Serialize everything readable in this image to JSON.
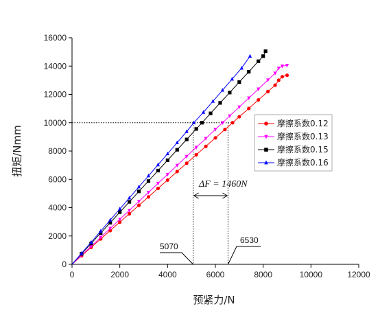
{
  "chart_data": {
    "type": "line",
    "xlabel": "预紧力/N",
    "ylabel": "扭矩/Nmm",
    "xlim": [
      0,
      12000
    ],
    "ylim": [
      0,
      16000
    ],
    "x_ticks": [
      "0",
      "2000",
      "4000",
      "6000",
      "8000",
      "10000",
      "12000"
    ],
    "y_ticks": [
      "0",
      "2000",
      "4000",
      "6000",
      "8000",
      "10000",
      "12000",
      "14000",
      "16000"
    ],
    "grid": false,
    "legend_position": "right",
    "series": [
      {
        "name": "摩擦系数0.12",
        "color": "#ff0000",
        "marker": "circle",
        "points": [
          [
            0,
            0
          ],
          [
            400,
            600
          ],
          [
            800,
            1200
          ],
          [
            1200,
            1790
          ],
          [
            1600,
            2380
          ],
          [
            2000,
            2980
          ],
          [
            2400,
            3570
          ],
          [
            2800,
            4170
          ],
          [
            3200,
            4760
          ],
          [
            3600,
            5360
          ],
          [
            4000,
            5950
          ],
          [
            4400,
            6550
          ],
          [
            4800,
            7140
          ],
          [
            5200,
            7740
          ],
          [
            5600,
            8330
          ],
          [
            6000,
            8930
          ],
          [
            6400,
            9520
          ],
          [
            6720,
            10000
          ],
          [
            7000,
            10420
          ],
          [
            7400,
            11010
          ],
          [
            7800,
            11610
          ],
          [
            8200,
            12200
          ],
          [
            8500,
            12650
          ],
          [
            8650,
            13000
          ],
          [
            8800,
            13250
          ],
          [
            9000,
            13350
          ]
        ]
      },
      {
        "name": "摩擦系数0.13",
        "color": "#ff00ff",
        "marker": "triangle-down",
        "points": [
          [
            0,
            0
          ],
          [
            400,
            640
          ],
          [
            800,
            1270
          ],
          [
            1200,
            1910
          ],
          [
            1600,
            2540
          ],
          [
            2000,
            3180
          ],
          [
            2400,
            3810
          ],
          [
            2800,
            4450
          ],
          [
            3200,
            5080
          ],
          [
            3600,
            5720
          ],
          [
            4000,
            6350
          ],
          [
            4400,
            6990
          ],
          [
            4800,
            7620
          ],
          [
            5200,
            8260
          ],
          [
            5600,
            8890
          ],
          [
            6000,
            9530
          ],
          [
            6300,
            10000
          ],
          [
            6600,
            10480
          ],
          [
            7000,
            11110
          ],
          [
            7400,
            11750
          ],
          [
            7800,
            12380
          ],
          [
            8200,
            13020
          ],
          [
            8500,
            13500
          ],
          [
            8650,
            13850
          ],
          [
            8800,
            14000
          ],
          [
            9000,
            14050
          ]
        ]
      },
      {
        "name": "摩擦系数0.15",
        "color": "#000000",
        "marker": "square",
        "points": [
          [
            0,
            0
          ],
          [
            400,
            740
          ],
          [
            800,
            1470
          ],
          [
            1200,
            2210
          ],
          [
            1600,
            2940
          ],
          [
            2000,
            3680
          ],
          [
            2400,
            4410
          ],
          [
            2800,
            5150
          ],
          [
            3200,
            5880
          ],
          [
            3600,
            6620
          ],
          [
            4000,
            7350
          ],
          [
            4400,
            8090
          ],
          [
            4800,
            8820
          ],
          [
            5200,
            9560
          ],
          [
            5440,
            10000
          ],
          [
            5800,
            10660
          ],
          [
            6200,
            11400
          ],
          [
            6600,
            12130
          ],
          [
            7000,
            12870
          ],
          [
            7400,
            13600
          ],
          [
            7800,
            14340
          ],
          [
            8000,
            14700
          ],
          [
            8100,
            15050
          ]
        ]
      },
      {
        "name": "摩擦系数0.16",
        "color": "#0000ff",
        "marker": "triangle-up",
        "points": [
          [
            0,
            0
          ],
          [
            400,
            780
          ],
          [
            800,
            1560
          ],
          [
            1200,
            2340
          ],
          [
            1600,
            3130
          ],
          [
            2000,
            3910
          ],
          [
            2400,
            4690
          ],
          [
            2800,
            5470
          ],
          [
            3200,
            6250
          ],
          [
            3600,
            7030
          ],
          [
            4000,
            7810
          ],
          [
            4400,
            8590
          ],
          [
            4800,
            9380
          ],
          [
            5100,
            10000
          ],
          [
            5500,
            10740
          ],
          [
            5900,
            11520
          ],
          [
            6300,
            12300
          ],
          [
            6700,
            13080
          ],
          [
            7100,
            13860
          ],
          [
            7450,
            14700
          ]
        ]
      }
    ],
    "annotations": {
      "delta_label": "ΔF = 1460N",
      "x_markers": [
        "5070",
        "6530"
      ],
      "x_marker_values": [
        5070,
        6530
      ],
      "reference_y": 10000
    }
  }
}
